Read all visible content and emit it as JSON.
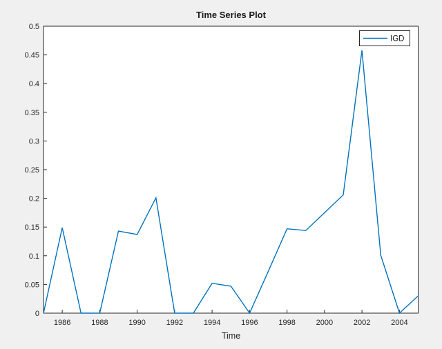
{
  "figure": {
    "background_color": "#F0F0F0",
    "plot_background_color": "#FFFFFF",
    "axis_color": "#262626",
    "tick_label_color": "#262626",
    "title_color": "#1a1a1a"
  },
  "chart_data": {
    "type": "line",
    "title": "Time Series Plot",
    "xlabel": "Time",
    "ylabel": "",
    "grid": false,
    "legend_position": "top-right",
    "xlim": [
      1985,
      2005
    ],
    "ylim": [
      0,
      0.5
    ],
    "xticks": [
      1986,
      1988,
      1990,
      1992,
      1994,
      1996,
      1998,
      2000,
      2002,
      2004
    ],
    "xtick_labels": [
      "1986",
      "1988",
      "1990",
      "1992",
      "1994",
      "1996",
      "1998",
      "2000",
      "2002",
      "2004"
    ],
    "yticks": [
      0,
      0.05,
      0.1,
      0.15,
      0.2,
      0.25,
      0.3,
      0.35,
      0.4,
      0.45,
      0.5
    ],
    "ytick_labels": [
      "0",
      "0.05",
      "0.1",
      "0.15",
      "0.2",
      "0.25",
      "0.3",
      "0.35",
      "0.4",
      "0.45",
      "0.5"
    ],
    "x": [
      1985,
      1986,
      1987,
      1988,
      1989,
      1990,
      1991,
      1992,
      1993,
      1994,
      1995,
      1996,
      1997,
      1998,
      1999,
      2000,
      2001,
      2002,
      2003,
      2004,
      2005
    ],
    "series": [
      {
        "name": "IGD",
        "color": "#0072BD",
        "values": [
          0,
          0.149,
          0,
          0,
          0.143,
          0.137,
          0.201,
          0,
          0,
          0.052,
          0.047,
          0,
          0.073,
          0.147,
          0.144,
          0.175,
          0.206,
          0.458,
          0.101,
          0,
          0.03
        ]
      }
    ]
  }
}
